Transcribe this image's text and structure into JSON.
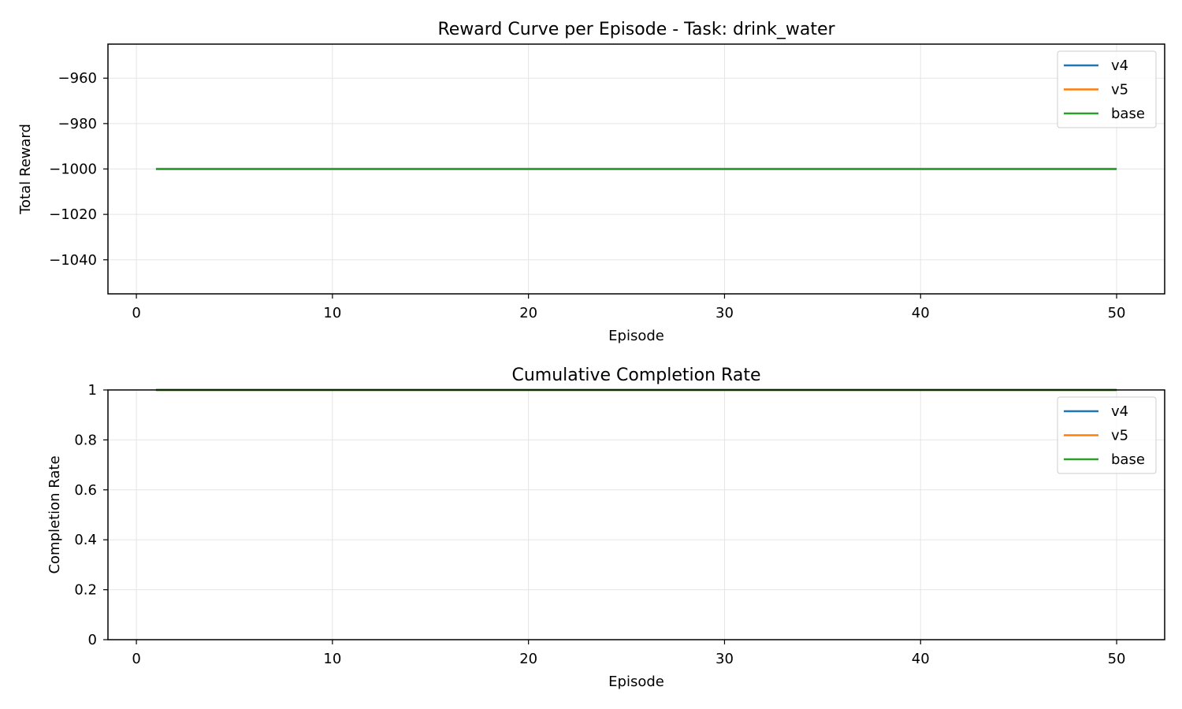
{
  "chart_data": [
    {
      "type": "line",
      "title": "Reward Curve per Episode - Task: drink_water",
      "xlabel": "Episode",
      "ylabel": "Total Reward",
      "xlim": [
        -1.45,
        52.45
      ],
      "ylim": [
        -1055,
        -945
      ],
      "xticks": [
        0,
        10,
        20,
        30,
        40,
        50
      ],
      "yticks": [
        -1040,
        -1020,
        -1000,
        -980,
        -960
      ],
      "x_range": [
        1,
        50
      ],
      "grid": true,
      "legend_position": "upper right",
      "series": [
        {
          "name": "v4",
          "color": "#1f77b4",
          "constant_value": -1000
        },
        {
          "name": "v5",
          "color": "#ff7f0e",
          "constant_value": -1000
        },
        {
          "name": "base",
          "color": "#2ca02c",
          "constant_value": -1000
        }
      ]
    },
    {
      "type": "line",
      "title": "Cumulative Completion Rate",
      "xlabel": "Episode",
      "ylabel": "Completion Rate",
      "xlim": [
        -1.45,
        52.45
      ],
      "ylim": [
        0,
        1
      ],
      "xticks": [
        0,
        10,
        20,
        30,
        40,
        50
      ],
      "yticks": [
        0,
        0.2,
        0.4,
        0.6,
        0.8,
        1
      ],
      "x_range": [
        1,
        50
      ],
      "grid": true,
      "legend_position": "upper right",
      "series": [
        {
          "name": "v4",
          "color": "#1f77b4",
          "constant_value": 1.0
        },
        {
          "name": "v5",
          "color": "#ff7f0e",
          "constant_value": 1.0
        },
        {
          "name": "base",
          "color": "#2ca02c",
          "constant_value": 1.0
        }
      ]
    }
  ]
}
